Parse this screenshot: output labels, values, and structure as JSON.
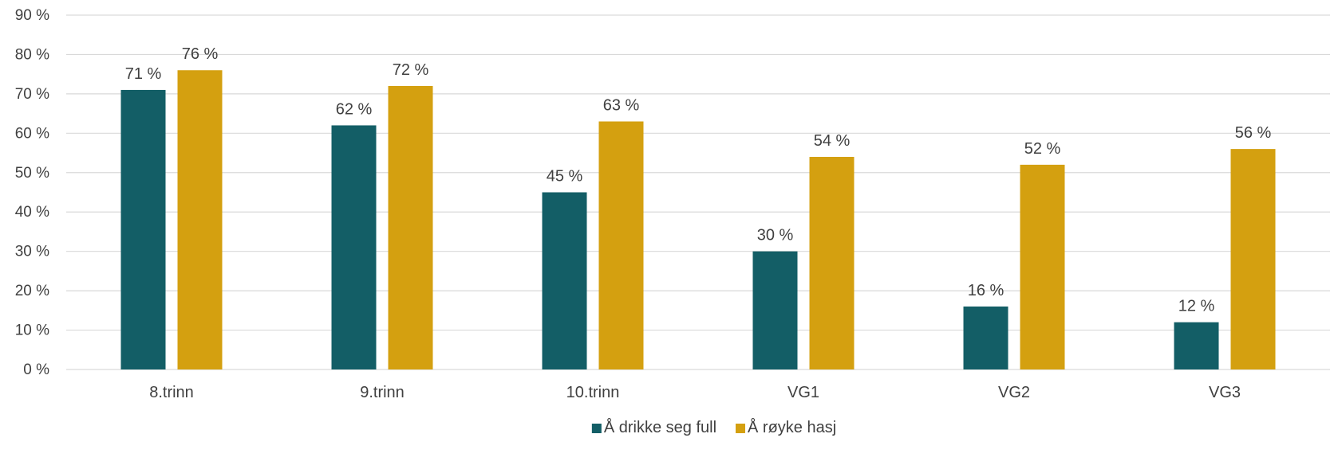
{
  "chart_data": {
    "type": "bar",
    "categories": [
      "8.trinn",
      "9.trinn",
      "10.trinn",
      "VG1",
      "VG2",
      "VG3"
    ],
    "series": [
      {
        "name": "Å drikke seg full",
        "values": [
          71,
          62,
          45,
          30,
          16,
          12
        ],
        "labels": [
          "71 %",
          "62 %",
          "45 %",
          "30 %",
          "16 %",
          "12 %"
        ],
        "color": "#135e66"
      },
      {
        "name": "Å røyke hasj",
        "values": [
          76,
          72,
          63,
          54,
          52,
          56
        ],
        "labels": [
          "76 %",
          "72 %",
          "63 %",
          "54 %",
          "52 %",
          "56 %"
        ],
        "color": "#d4a010"
      }
    ],
    "ylim": [
      0,
      90
    ],
    "yticks": [
      0,
      10,
      20,
      30,
      40,
      50,
      60,
      70,
      80,
      90
    ],
    "ytick_labels": [
      "0 %",
      "10 %",
      "20 %",
      "30 %",
      "40 %",
      "50 %",
      "60 %",
      "70 %",
      "80 %",
      "90 %"
    ],
    "grid": true,
    "legend": "bottom-center",
    "gridline_color": "#d9d9d9",
    "text_color": "#404040"
  }
}
